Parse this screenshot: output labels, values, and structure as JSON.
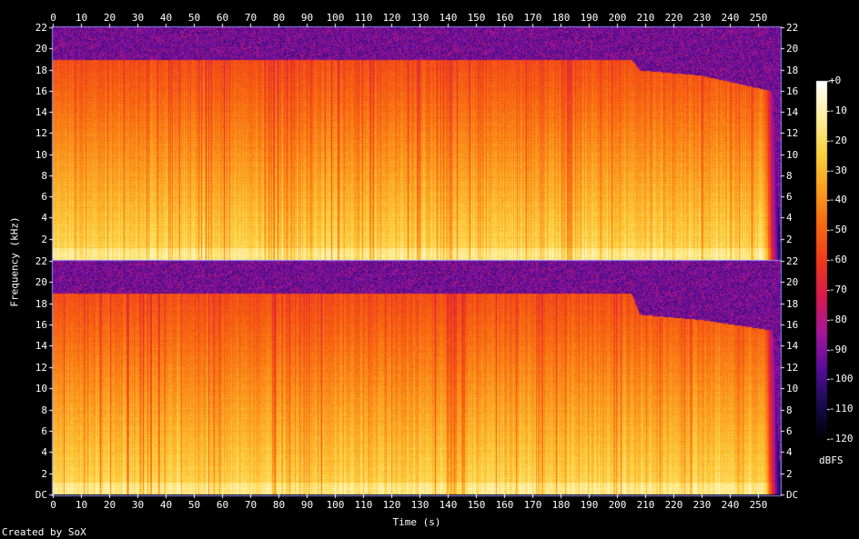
{
  "chart_data": {
    "type": "heatmap",
    "title": "",
    "xlabel": "Time (s)",
    "ylabel": "Frequency (kHz)",
    "colorbar_label": "dBFS",
    "credit": "Created by SoX",
    "x_ticks": [
      0,
      10,
      20,
      30,
      40,
      50,
      60,
      70,
      80,
      90,
      100,
      110,
      120,
      130,
      140,
      150,
      160,
      170,
      180,
      190,
      200,
      210,
      220,
      230,
      240,
      250
    ],
    "y_ticks_top": [
      "2",
      "4",
      "6",
      "8",
      "10",
      "12",
      "14",
      "16",
      "18",
      "20",
      "22"
    ],
    "y_ticks_bottom": [
      "DC",
      "2",
      "4",
      "6",
      "8",
      "10",
      "12",
      "14",
      "16",
      "18",
      "20",
      "22"
    ],
    "colorbar_ticks": [
      "+0",
      "-10",
      "-20",
      "-30",
      "-40",
      "-50",
      "-60",
      "-70",
      "-80",
      "-90",
      "-100",
      "-110",
      "-120"
    ],
    "xlim": [
      0,
      258
    ],
    "ylim_khz": [
      0,
      22.05
    ],
    "zlim_dbfs": [
      -120,
      0
    ],
    "channels": [
      {
        "name": "",
        "cutoff_khz": [
          [
            0,
            19.0
          ],
          [
            205,
            19.0
          ],
          [
            208,
            18.0
          ],
          [
            230,
            17.5
          ],
          [
            255,
            16.0
          ],
          [
            258,
            0
          ]
        ],
        "dropout_regions_s": [
          [
            78,
            92
          ],
          [
            138,
            142
          ]
        ]
      },
      {
        "name": "",
        "cutoff_khz": [
          [
            0,
            19.0
          ],
          [
            205,
            19.0
          ],
          [
            208,
            17.0
          ],
          [
            230,
            16.5
          ],
          [
            255,
            15.5
          ],
          [
            258,
            0
          ]
        ],
        "dropout_regions_s": [
          [
            78,
            92
          ],
          [
            138,
            146
          ]
        ]
      }
    ],
    "colormap": [
      "#000000",
      "#1a0b52",
      "#5a0d9a",
      "#a8169c",
      "#d81a4c",
      "#ef3b1c",
      "#f86a10",
      "#fca020",
      "#fdd240",
      "#fff0a0",
      "#ffffff"
    ]
  }
}
